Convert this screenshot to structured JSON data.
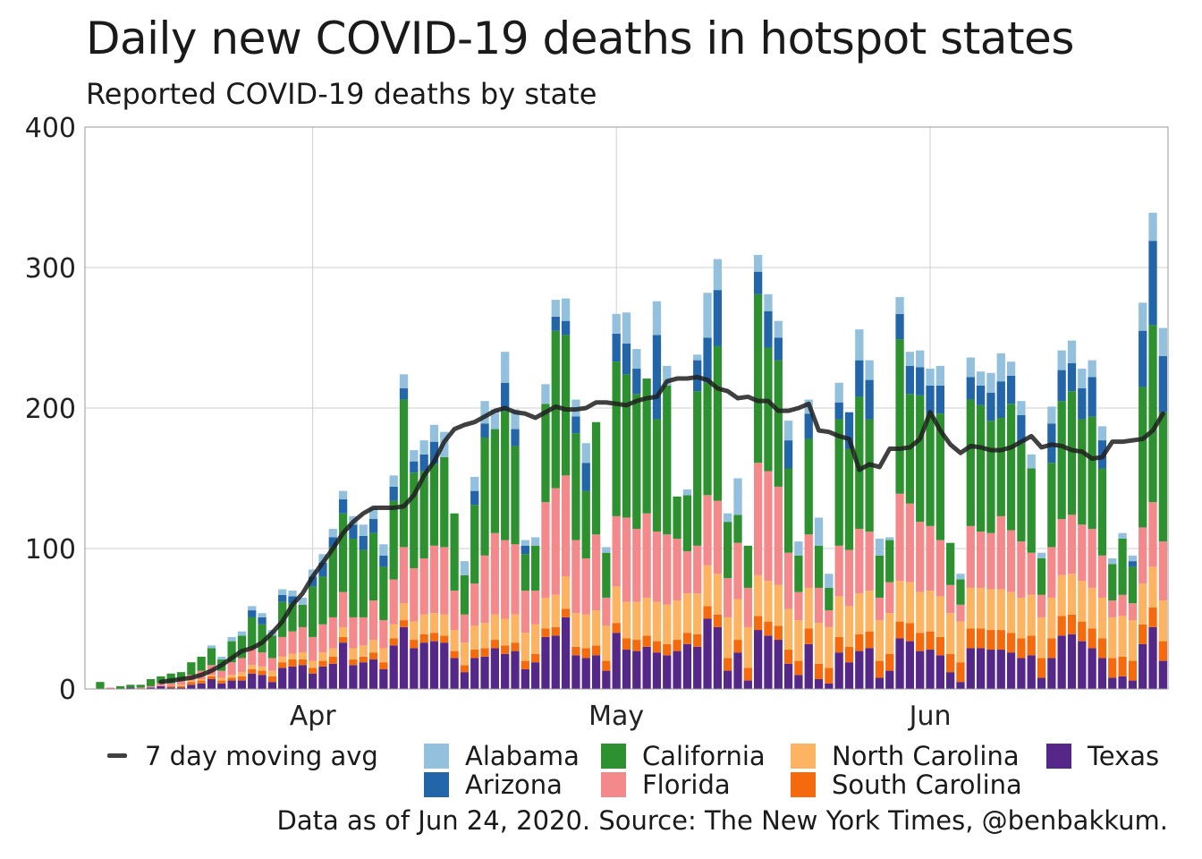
{
  "title": "Daily new COVID-19 deaths in hotspot states",
  "subtitle": "Reported COVID-19 deaths by state",
  "caption": "Data as of Jun 24, 2020. Source: The New York Times, @benbakkum.",
  "legend": {
    "moving_avg_label": "7 day moving avg",
    "moving_avg_color": "#404040"
  },
  "chart_data": {
    "type": "bar",
    "stacked": true,
    "ylim": [
      0,
      400
    ],
    "yticks": [
      0,
      100,
      200,
      300,
      400
    ],
    "xlim": [
      "2020-03-10",
      "2020-06-24"
    ],
    "xticks": [
      {
        "date": "2020-04-01",
        "label": "Apr"
      },
      {
        "date": "2020-05-01",
        "label": "May"
      },
      {
        "date": "2020-06-01",
        "label": "Jun"
      }
    ],
    "grid": true,
    "dates": [
      "2020-03-11",
      "2020-03-12",
      "2020-03-13",
      "2020-03-14",
      "2020-03-15",
      "2020-03-16",
      "2020-03-17",
      "2020-03-18",
      "2020-03-19",
      "2020-03-20",
      "2020-03-21",
      "2020-03-22",
      "2020-03-23",
      "2020-03-24",
      "2020-03-25",
      "2020-03-26",
      "2020-03-27",
      "2020-03-28",
      "2020-03-29",
      "2020-03-30",
      "2020-03-31",
      "2020-04-01",
      "2020-04-02",
      "2020-04-03",
      "2020-04-04",
      "2020-04-05",
      "2020-04-06",
      "2020-04-07",
      "2020-04-08",
      "2020-04-09",
      "2020-04-10",
      "2020-04-11",
      "2020-04-12",
      "2020-04-13",
      "2020-04-14",
      "2020-04-15",
      "2020-04-16",
      "2020-04-17",
      "2020-04-18",
      "2020-04-19",
      "2020-04-20",
      "2020-04-21",
      "2020-04-22",
      "2020-04-23",
      "2020-04-24",
      "2020-04-25",
      "2020-04-26",
      "2020-04-27",
      "2020-04-28",
      "2020-04-29",
      "2020-04-30",
      "2020-05-01",
      "2020-05-02",
      "2020-05-03",
      "2020-05-04",
      "2020-05-05",
      "2020-05-06",
      "2020-05-07",
      "2020-05-08",
      "2020-05-09",
      "2020-05-10",
      "2020-05-11",
      "2020-05-12",
      "2020-05-13",
      "2020-05-14",
      "2020-05-15",
      "2020-05-16",
      "2020-05-17",
      "2020-05-18",
      "2020-05-19",
      "2020-05-20",
      "2020-05-21",
      "2020-05-22",
      "2020-05-23",
      "2020-05-24",
      "2020-05-25",
      "2020-05-26",
      "2020-05-27",
      "2020-05-28",
      "2020-05-29",
      "2020-05-30",
      "2020-05-31",
      "2020-06-01",
      "2020-06-02",
      "2020-06-03",
      "2020-06-04",
      "2020-06-05",
      "2020-06-06",
      "2020-06-07",
      "2020-06-08",
      "2020-06-09",
      "2020-06-10",
      "2020-06-11",
      "2020-06-12",
      "2020-06-13",
      "2020-06-14",
      "2020-06-15",
      "2020-06-16",
      "2020-06-17",
      "2020-06-18",
      "2020-06-19",
      "2020-06-20",
      "2020-06-21",
      "2020-06-22",
      "2020-06-23",
      "2020-06-24"
    ],
    "series": [
      {
        "name": "Texas",
        "color": "#542788",
        "values": [
          0,
          0,
          0,
          1,
          0,
          1,
          2,
          1,
          1,
          3,
          4,
          7,
          4,
          6,
          6,
          11,
          10,
          5,
          15,
          16,
          17,
          11,
          16,
          18,
          33,
          17,
          19,
          21,
          14,
          31,
          44,
          29,
          33,
          34,
          33,
          22,
          12,
          22,
          23,
          29,
          25,
          27,
          14,
          19,
          37,
          38,
          51,
          24,
          22,
          24,
          13,
          40,
          28,
          27,
          30,
          26,
          24,
          27,
          32,
          30,
          50,
          44,
          13,
          26,
          6,
          42,
          38,
          35,
          18,
          10,
          32,
          7,
          4,
          26,
          19,
          27,
          29,
          8,
          13,
          36,
          34,
          27,
          28,
          24,
          12,
          5,
          29,
          29,
          28,
          28,
          26,
          22,
          24,
          8,
          22,
          38,
          39,
          34,
          29,
          22,
          8,
          9,
          6,
          32,
          44,
          20
        ],
        "total_extra": 0
      },
      {
        "name": "South Carolina",
        "color": "#f66a0e",
        "values": [
          0,
          0,
          0,
          0,
          0,
          0,
          0,
          1,
          1,
          2,
          2,
          2,
          2,
          2,
          3,
          3,
          3,
          4,
          4,
          5,
          4,
          4,
          4,
          5,
          4,
          4,
          4,
          5,
          5,
          5,
          5,
          6,
          6,
          6,
          5,
          5,
          5,
          6,
          6,
          6,
          6,
          6,
          6,
          6,
          6,
          6,
          6,
          6,
          7,
          7,
          7,
          7,
          8,
          8,
          8,
          8,
          8,
          8,
          8,
          9,
          9,
          9,
          9,
          9,
          9,
          10,
          10,
          10,
          10,
          10,
          11,
          11,
          11,
          11,
          11,
          12,
          12,
          12,
          12,
          12,
          13,
          13,
          13,
          13,
          13,
          14,
          14,
          14,
          14,
          14,
          14,
          14,
          14,
          14,
          14,
          14,
          14,
          14,
          14,
          14,
          14,
          14,
          14,
          14,
          14,
          14
        ]
      },
      {
        "name": "North Carolina",
        "color": "#fdb462",
        "values": [
          0,
          0,
          0,
          0,
          0,
          0,
          0,
          0,
          1,
          1,
          1,
          1,
          2,
          2,
          3,
          3,
          3,
          4,
          4,
          4,
          5,
          5,
          6,
          6,
          7,
          8,
          8,
          9,
          10,
          10,
          12,
          13,
          14,
          14,
          15,
          15,
          16,
          17,
          18,
          18,
          19,
          20,
          20,
          21,
          22,
          23,
          23,
          24,
          24,
          25,
          25,
          26,
          26,
          27,
          27,
          28,
          28,
          28,
          28,
          29,
          29,
          29,
          29,
          29,
          29,
          29,
          29,
          29,
          29,
          29,
          29,
          29,
          29,
          29,
          29,
          29,
          29,
          29,
          29,
          29,
          29,
          29,
          29,
          29,
          29,
          29,
          29,
          29,
          29,
          29,
          29,
          29,
          29,
          29,
          29,
          29,
          29,
          29,
          29,
          29,
          29,
          29,
          29,
          29,
          29,
          29
        ]
      },
      {
        "name": "Florida",
        "color": "#f4898b",
        "values": [
          0,
          1,
          0,
          0,
          1,
          1,
          2,
          2,
          3,
          4,
          6,
          7,
          5,
          9,
          10,
          12,
          10,
          9,
          14,
          16,
          18,
          17,
          20,
          22,
          25,
          22,
          20,
          28,
          20,
          32,
          40,
          38,
          40,
          48,
          48,
          28,
          20,
          30,
          48,
          58,
          56,
          50,
          30,
          24,
          68,
          76,
          72,
          52,
          40,
          54,
          20,
          50,
          60,
          52,
          60,
          50,
          50,
          44,
          30,
          34,
          50,
          52,
          28,
          40,
          28,
          80,
          78,
          70,
          40,
          20,
          38,
          25,
          12,
          36,
          40,
          46,
          42,
          16,
          22,
          62,
          56,
          50,
          46,
          40,
          20,
          12,
          44,
          40,
          40,
          52,
          44,
          40,
          30,
          16,
          36,
          40,
          42,
          40,
          42,
          30,
          12,
          15,
          12,
          40,
          46,
          42
        ]
      },
      {
        "name": "California",
        "color": "#2e9130",
        "values": [
          5,
          0,
          2,
          2,
          2,
          5,
          5,
          7,
          6,
          9,
          10,
          12,
          8,
          15,
          16,
          22,
          20,
          16,
          25,
          20,
          16,
          36,
          34,
          50,
          56,
          56,
          48,
          48,
          38,
          56,
          105,
          68,
          62,
          58,
          64,
          55,
          28,
          56,
          84,
          74,
          92,
          70,
          26,
          32,
          70,
          112,
          100,
          76,
          48,
          80,
          32,
          110,
          102,
          96,
          96,
          80,
          106,
          30,
          40,
          110,
          80,
          110,
          40,
          20,
          30,
          120,
          88,
          90,
          60,
          26,
          68,
          30,
          16,
          90,
          72,
          94,
          80,
          30,
          30,
          110,
          78,
          90,
          80,
          90,
          30,
          18,
          90,
          90,
          80,
          70,
          90,
          70,
          60,
          26,
          60,
          84,
          88,
          75,
          80,
          62,
          26,
          40,
          26,
          100,
          126,
          92
        ]
      },
      {
        "name": "Arizona",
        "color": "#2265a8",
        "values": [
          0,
          0,
          0,
          0,
          0,
          0,
          0,
          0,
          0,
          0,
          0,
          0,
          0,
          0,
          0,
          5,
          5,
          0,
          5,
          5,
          0,
          7,
          10,
          7,
          10,
          10,
          10,
          10,
          8,
          10,
          8,
          8,
          12,
          16,
          0,
          0,
          0,
          10,
          10,
          0,
          20,
          12,
          6,
          0,
          0,
          10,
          10,
          12,
          20,
          0,
          0,
          20,
          22,
          18,
          0,
          60,
          0,
          0,
          0,
          22,
          32,
          40,
          0,
          0,
          0,
          16,
          26,
          16,
          20,
          0,
          18,
          0,
          0,
          12,
          26,
          26,
          28,
          0,
          0,
          18,
          20,
          20,
          20,
          20,
          0,
          0,
          16,
          14,
          20,
          26,
          20,
          20,
          0,
          0,
          28,
          22,
          20,
          22,
          28,
          20,
          0,
          0,
          4,
          40,
          60,
          40
        ]
      },
      {
        "name": "Alabama",
        "color": "#93c0dc",
        "values": [
          0,
          0,
          0,
          0,
          0,
          0,
          0,
          0,
          0,
          0,
          0,
          2,
          2,
          3,
          3,
          3,
          3,
          4,
          4,
          4,
          5,
          5,
          6,
          6,
          6,
          6,
          8,
          8,
          8,
          8,
          10,
          8,
          10,
          12,
          18,
          0,
          10,
          10,
          16,
          14,
          22,
          14,
          4,
          6,
          14,
          12,
          16,
          12,
          14,
          0,
          4,
          14,
          22,
          14,
          0,
          24,
          14,
          0,
          4,
          4,
          32,
          22,
          6,
          26,
          0,
          12,
          12,
          12,
          14,
          10,
          10,
          20,
          10,
          14,
          0,
          22,
          14,
          12,
          2,
          12,
          10,
          12,
          12,
          14,
          0,
          4,
          14,
          10,
          14,
          20,
          10,
          10,
          10,
          4,
          12,
          14,
          16,
          14,
          12,
          10,
          4,
          4,
          4,
          20,
          20,
          20
        ]
      }
    ],
    "moving_avg": {
      "name": "7 day moving avg",
      "color": "#404040",
      "values": [
        null,
        null,
        null,
        null,
        null,
        null,
        5,
        6,
        7,
        8,
        10,
        13,
        17,
        22,
        27,
        29,
        33,
        40,
        48,
        60,
        68,
        80,
        90,
        100,
        111,
        119,
        125,
        129,
        129,
        129,
        130,
        138,
        152,
        162,
        176,
        185,
        188,
        190,
        194,
        198,
        200,
        197,
        196,
        193,
        197,
        201,
        199,
        199,
        200,
        204,
        204,
        203,
        202,
        205,
        207,
        208,
        219,
        221,
        221,
        222,
        220,
        214,
        212,
        207,
        208,
        205,
        205,
        198,
        198,
        200,
        203,
        184,
        183,
        180,
        178,
        156,
        160,
        158,
        171,
        171,
        172,
        178,
        197,
        184,
        174,
        168,
        173,
        172,
        170,
        170,
        172,
        176,
        180,
        172,
        174,
        173,
        170,
        169,
        164,
        165,
        176,
        176,
        177,
        178,
        184,
        196
      ]
    }
  },
  "legend_items": [
    {
      "label": "Alabama",
      "color": "#93c0dc"
    },
    {
      "label": "Arizona",
      "color": "#2265a8"
    },
    {
      "label": "California",
      "color": "#2e9130"
    },
    {
      "label": "Florida",
      "color": "#f4898b"
    },
    {
      "label": "North Carolina",
      "color": "#fdb462"
    },
    {
      "label": "South Carolina",
      "color": "#f66a0e"
    },
    {
      "label": "Texas",
      "color": "#542788"
    }
  ]
}
